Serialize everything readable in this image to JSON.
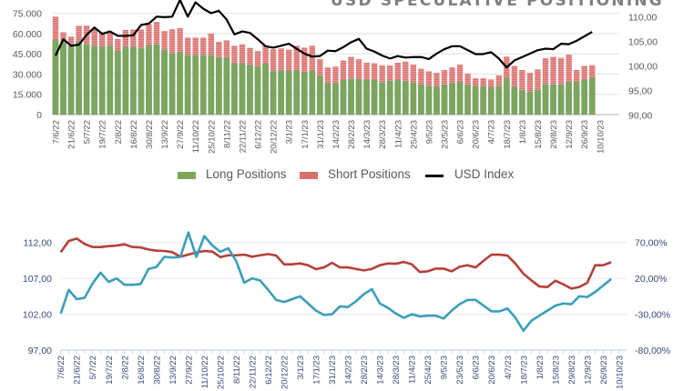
{
  "chart_data": [
    {
      "type": "bar",
      "stacked": true,
      "title": "USD SPECULATIVE POSITIONING",
      "frequency": "weekly",
      "x_tick_labels": [
        "7/6/22",
        "21/6/22",
        "5/7/22",
        "19/7/22",
        "2/8/22",
        "16/8/22",
        "30/8/22",
        "13/9/22",
        "27/9/22",
        "11/10/22",
        "25/10/22",
        "8/11/22",
        "22/11/22",
        "6/12/22",
        "20/12/22",
        "3/1/23",
        "17/1/23",
        "31/1/23",
        "14/2/23",
        "28/2/23",
        "14/3/23",
        "28/3/23",
        "11/4/23",
        "25/4/23",
        "9/5/23",
        "23/5/23",
        "6/6/23",
        "20/6/23",
        "4/7/23",
        "18/7/23",
        "1/8/23",
        "15/8/23",
        "29/8/23",
        "12/9/23",
        "26/9/23",
        "10/10/23"
      ],
      "y_left": {
        "ticks": [
          "0",
          "15.000",
          "30.000",
          "45.000",
          "60.000",
          "75.000"
        ],
        "range": [
          0,
          75000
        ]
      },
      "y_right": {
        "ticks": [
          "90,00",
          "95,00",
          "100,00",
          "105,00",
          "110,00"
        ],
        "range": [
          90,
          110
        ]
      },
      "grid": true,
      "legend_position": "bottom",
      "series": [
        {
          "name": "Long Positions",
          "kind": "bar",
          "color": "#7ea65a",
          "values": [
            55000,
            53000,
            51000,
            54600,
            52000,
            50800,
            50000,
            50800,
            47000,
            50000,
            50000,
            49000,
            51000,
            52000,
            48000,
            45000,
            46000,
            44000,
            44000,
            44000,
            44000,
            42000,
            42000,
            38000,
            38000,
            36400,
            35500,
            37700,
            32000,
            32500,
            32300,
            33000,
            31000,
            32500,
            28500,
            23000,
            23000,
            25600,
            26500,
            26300,
            25600,
            25600,
            23800,
            25000,
            25400,
            24700,
            23600,
            22500,
            21000,
            20400,
            22000,
            22900,
            24000,
            21800,
            20700,
            21000,
            20000,
            20700,
            26700,
            20400,
            18000,
            16800,
            18400,
            22400,
            22000,
            22000,
            24300,
            24000,
            25600,
            27000
          ]
        },
        {
          "name": "Short Positions",
          "kind": "bar",
          "color": "#d9706e",
          "totals": [
            72500,
            61000,
            57700,
            65800,
            66000,
            63500,
            61000,
            61000,
            56000,
            62700,
            63000,
            63000,
            67000,
            68700,
            62000,
            63300,
            64000,
            57000,
            57000,
            57000,
            60000,
            54000,
            55000,
            51000,
            52000,
            49400,
            47000,
            51000,
            48500,
            49000,
            48000,
            51000,
            49600,
            51000,
            41000,
            35000,
            35500,
            40000,
            42700,
            41000,
            38400,
            38000,
            36600,
            36400,
            38400,
            39300,
            37000,
            34000,
            32000,
            31000,
            33000,
            35000,
            37000,
            30300,
            27000,
            27000,
            26000,
            29000,
            43000,
            36000,
            33000,
            31000,
            33500,
            41800,
            42700,
            42000,
            44500,
            33000,
            36000,
            36600
          ]
        },
        {
          "name": "USD Index",
          "kind": "line",
          "axis": "right",
          "color": "#000000",
          "values": [
            102.1,
            105.4,
            104.1,
            104.3,
            106.3,
            107.8,
            106.5,
            107.0,
            106.1,
            106.1,
            106.2,
            108.3,
            108.6,
            110.0,
            109.9,
            110.0,
            113.4,
            110.0,
            112.9,
            111.6,
            110.7,
            111.2,
            109.4,
            106.4,
            107.0,
            106.7,
            105.4,
            104.0,
            103.7,
            104.1,
            104.5,
            103.5,
            102.5,
            101.9,
            102.0,
            103.1,
            103.0,
            103.8,
            104.8,
            105.5,
            103.5,
            102.9,
            102.1,
            101.5,
            102.0,
            101.7,
            101.8,
            101.8,
            101.4,
            102.5,
            103.4,
            104.0,
            104.0,
            103.2,
            102.4,
            102.4,
            102.8,
            101.5,
            99.7,
            101.1,
            101.8,
            102.5,
            103.2,
            103.5,
            103.4,
            104.5,
            104.4,
            105.1,
            106.0,
            106.9
          ]
        }
      ]
    },
    {
      "type": "line",
      "frequency": "weekly",
      "x_tick_labels": [
        "7/6/22",
        "21/6/22",
        "5/7/22",
        "19/7/22",
        "2/8/22",
        "16/8/22",
        "30/8/22",
        "13/9/22",
        "27/9/22",
        "11/10/22",
        "25/10/22",
        "8/11/22",
        "22/11/22",
        "6/12/22",
        "20/12/22",
        "3/1/23",
        "17/1/23",
        "31/1/23",
        "14/2/23",
        "28/2/23",
        "14/3/23",
        "28/3/23",
        "11/4/23",
        "25/4/23",
        "9/5/23",
        "23/5/23",
        "6/6/23",
        "20/6/23",
        "4/7/23",
        "18/7/23",
        "1/8/23",
        "15/8/23",
        "29/8/23",
        "12/9/23",
        "26/9/23",
        "10/10/23"
      ],
      "y_left": {
        "ticks": [
          "97,00",
          "102,00",
          "107,00",
          "112,00"
        ],
        "range": [
          97,
          112
        ]
      },
      "y_right": {
        "ticks": [
          "-80,00%",
          "-30,00%",
          "20,00%",
          "70,00%"
        ],
        "range": [
          -80,
          70
        ]
      },
      "grid": true,
      "series": [
        {
          "axis": "left",
          "color": "#3a9fb8",
          "values": [
            102.1,
            105.4,
            104.1,
            104.3,
            106.3,
            107.8,
            106.5,
            107.0,
            106.1,
            106.1,
            106.2,
            108.3,
            108.6,
            110.0,
            109.9,
            110.0,
            113.4,
            110.0,
            112.9,
            111.6,
            110.7,
            111.2,
            109.4,
            106.4,
            107.0,
            106.7,
            105.4,
            104.0,
            103.7,
            104.1,
            104.5,
            103.5,
            102.5,
            101.9,
            102.0,
            103.1,
            103.0,
            103.8,
            104.8,
            105.5,
            103.5,
            102.9,
            102.1,
            101.5,
            102.0,
            101.7,
            101.8,
            101.8,
            101.4,
            102.5,
            103.4,
            104.0,
            104.0,
            103.2,
            102.4,
            102.4,
            102.8,
            101.5,
            99.7,
            101.1,
            101.8,
            102.5,
            103.2,
            103.5,
            103.4,
            104.5,
            104.4,
            105.1,
            106.0,
            106.9
          ]
        },
        {
          "axis": "right",
          "color": "#b5403a",
          "values": [
            56.5,
            72.1,
            75.5,
            67.9,
            63.7,
            63.7,
            64.9,
            65.8,
            67.5,
            63.7,
            63.2,
            60.3,
            58.6,
            58.2,
            56.5,
            50.2,
            53.1,
            56.1,
            58.2,
            57.3,
            49.7,
            52.2,
            52.2,
            53.1,
            50.2,
            52.2,
            53.9,
            51.8,
            39.6,
            39.6,
            40.8,
            38.3,
            32.8,
            35.3,
            41.7,
            35.3,
            35.3,
            33.2,
            31.1,
            33.2,
            38.3,
            40.8,
            40.4,
            42.9,
            39.6,
            29.0,
            29.8,
            33.6,
            33.6,
            29.8,
            36.2,
            38.3,
            35.3,
            44.6,
            53.1,
            53.1,
            51.8,
            40.4,
            26.5,
            17.2,
            8.7,
            7.9,
            16.7,
            11.7,
            5.7,
            7.9,
            13.8,
            38.3,
            38.3,
            42.5
          ]
        }
      ]
    }
  ]
}
